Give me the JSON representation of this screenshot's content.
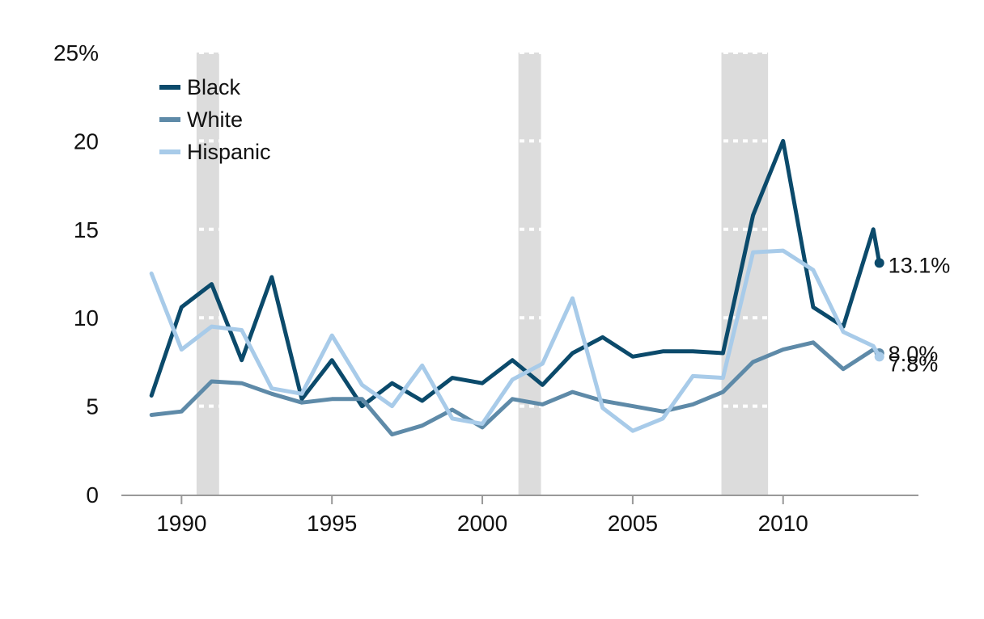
{
  "chart_data": {
    "type": "line",
    "title": "",
    "xlabel": "",
    "ylabel": "",
    "xlim": [
      1988,
      2014.5
    ],
    "ylim": [
      0,
      25
    ],
    "y_ticks": [
      0,
      5,
      10,
      15,
      20,
      25
    ],
    "y_tick_labels": [
      "0",
      "5",
      "10",
      "15",
      "20",
      "25%"
    ],
    "x_ticks": [
      1990,
      1995,
      2000,
      2005,
      2010
    ],
    "x_tick_labels": [
      "1990",
      "1995",
      "2000",
      "2005",
      "2010"
    ],
    "grid": true,
    "legend_position": "top-left",
    "shaded_periods": [
      {
        "start": 1990.5,
        "end": 1991.25
      },
      {
        "start": 2001.2,
        "end": 2001.95
      },
      {
        "start": 2007.95,
        "end": 2009.5
      }
    ],
    "x": [
      1989,
      1990,
      1991,
      1992,
      1993,
      1994,
      1995,
      1996,
      1997,
      1998,
      1999,
      2000,
      2001,
      2002,
      2003,
      2004,
      2005,
      2006,
      2007,
      2008,
      2009,
      2010,
      2011,
      2012,
      2013
    ],
    "series": [
      {
        "name": "Black",
        "color": "#0b4a6b",
        "values": [
          5.6,
          10.6,
          11.9,
          7.6,
          12.3,
          5.4,
          7.6,
          5.0,
          6.3,
          5.3,
          6.6,
          6.3,
          7.6,
          6.2,
          8.0,
          8.9,
          7.8,
          8.1,
          8.1,
          8.0,
          15.8,
          20.0,
          10.6,
          9.5,
          15.0
        ],
        "end_point": {
          "x": 2013.2,
          "value": 13.1
        },
        "end_label": "13.1%"
      },
      {
        "name": "White",
        "color": "#5e8aa8",
        "values": [
          4.5,
          4.7,
          6.4,
          6.3,
          5.7,
          5.2,
          5.4,
          5.4,
          3.4,
          3.9,
          4.8,
          3.8,
          5.4,
          5.1,
          5.8,
          5.3,
          5.0,
          4.7,
          5.1,
          5.8,
          7.5,
          8.2,
          8.6,
          7.1,
          8.2
        ],
        "end_point": {
          "x": 2013.2,
          "value": 8.0
        },
        "end_label": "8.0%"
      },
      {
        "name": "Hispanic",
        "color": "#a8cbe9",
        "values": [
          12.5,
          8.2,
          9.5,
          9.3,
          6.0,
          5.7,
          9.0,
          6.2,
          5.0,
          7.3,
          4.3,
          4.0,
          6.5,
          7.4,
          11.1,
          4.9,
          3.6,
          4.3,
          6.7,
          6.6,
          13.7,
          13.8,
          12.7,
          9.2,
          8.4
        ],
        "end_point": {
          "x": 2013.2,
          "value": 7.8
        },
        "end_label": "7.8%"
      }
    ]
  }
}
